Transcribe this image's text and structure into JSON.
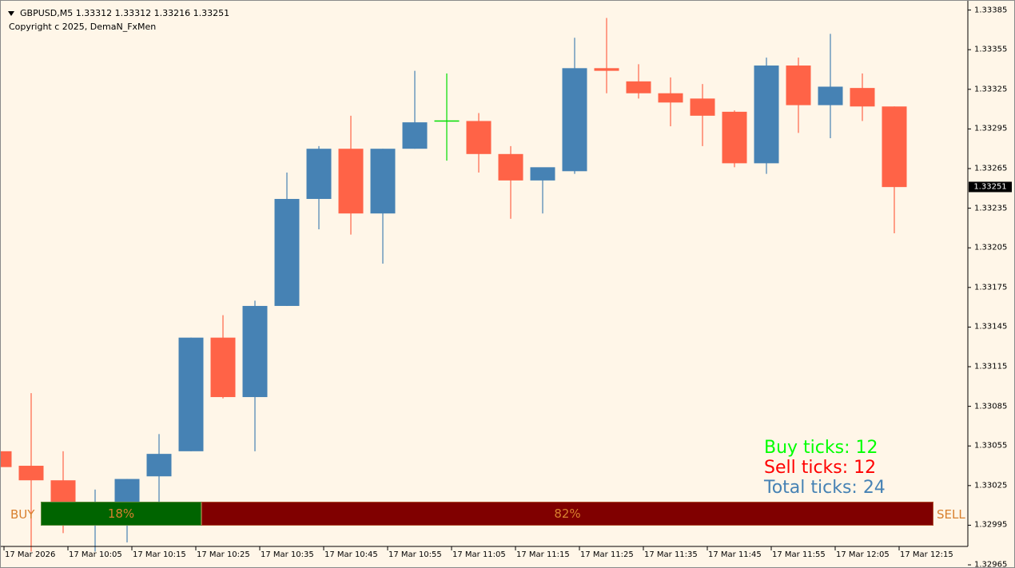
{
  "header": {
    "symbol_line": "GBPUSD,M5  1.33312 1.33312 1.33216 1.33251",
    "copyright": "Copyright c 2025, DemaN_FxMen"
  },
  "colors": {
    "background": "#fff6e8",
    "bull": "#4682b4",
    "bear": "#ff6347",
    "doji": "#00dd00",
    "buy_bar": "#006400",
    "sell_bar": "#800000",
    "buy_text": "#00ff00",
    "sell_text": "#ff0000",
    "total_text": "#4682b4",
    "pct_text": "#d8802e"
  },
  "price_axis": {
    "ticks": [
      "1.33385",
      "1.33355",
      "1.33325",
      "1.33295",
      "1.33265",
      "1.33235",
      "1.33205",
      "1.33175",
      "1.33145",
      "1.33115",
      "1.33085",
      "1.33055",
      "1.33025",
      "1.32995",
      "1.32965"
    ],
    "current_price": "1.33251"
  },
  "time_axis": {
    "labels": [
      "17 Mar 2026",
      "17 Mar 10:05",
      "17 Mar 10:15",
      "17 Mar 10:25",
      "17 Mar 10:35",
      "17 Mar 10:45",
      "17 Mar 10:55",
      "17 Mar 11:05",
      "17 Mar 11:15",
      "17 Mar 11:25",
      "17 Mar 11:35",
      "17 Mar 11:45",
      "17 Mar 11:55",
      "17 Mar 12:05",
      "17 Mar 12:15"
    ]
  },
  "chart_data": {
    "type": "candlestick",
    "symbol": "GBPUSD",
    "timeframe": "M5",
    "candles": [
      {
        "open": 1.33051,
        "high": 1.33051,
        "low": 1.33026,
        "close": 1.33039
      },
      {
        "open": 1.3304,
        "high": 1.33095,
        "low": 1.32975,
        "close": 1.33029
      },
      {
        "open": 1.33029,
        "high": 1.33051,
        "low": 1.32989,
        "close": 1.33004
      },
      {
        "open": 1.33004,
        "high": 1.33022,
        "low": 1.32975,
        "close": 1.3301
      },
      {
        "open": 1.33007,
        "high": 1.3303,
        "low": 1.32982,
        "close": 1.3303
      },
      {
        "open": 1.33032,
        "high": 1.33064,
        "low": 1.33012,
        "close": 1.33049
      },
      {
        "open": 1.33051,
        "high": 1.33137,
        "low": 1.33051,
        "close": 1.33137
      },
      {
        "open": 1.33137,
        "high": 1.33154,
        "low": 1.33091,
        "close": 1.33092
      },
      {
        "open": 1.33092,
        "high": 1.33165,
        "low": 1.33051,
        "close": 1.33161
      },
      {
        "open": 1.33161,
        "high": 1.33262,
        "low": 1.33161,
        "close": 1.33242
      },
      {
        "open": 1.33242,
        "high": 1.33282,
        "low": 1.33219,
        "close": 1.3328
      },
      {
        "open": 1.3328,
        "high": 1.33305,
        "low": 1.33215,
        "close": 1.33231
      },
      {
        "open": 1.33231,
        "high": 1.3328,
        "low": 1.33193,
        "close": 1.3328
      },
      {
        "open": 1.3328,
        "high": 1.33339,
        "low": 1.3328,
        "close": 1.333
      },
      {
        "open": 1.33301,
        "high": 1.33337,
        "low": 1.33271,
        "close": 1.33301
      },
      {
        "open": 1.33301,
        "high": 1.33307,
        "low": 1.33262,
        "close": 1.33276
      },
      {
        "open": 1.33276,
        "high": 1.33282,
        "low": 1.33227,
        "close": 1.33256
      },
      {
        "open": 1.33256,
        "high": 1.33264,
        "low": 1.33231,
        "close": 1.33266
      },
      {
        "open": 1.33263,
        "high": 1.33364,
        "low": 1.33261,
        "close": 1.33341
      },
      {
        "open": 1.33341,
        "high": 1.33379,
        "low": 1.33322,
        "close": 1.33339
      },
      {
        "open": 1.33331,
        "high": 1.33344,
        "low": 1.33318,
        "close": 1.33322
      },
      {
        "open": 1.33322,
        "high": 1.33334,
        "low": 1.33297,
        "close": 1.33315
      },
      {
        "open": 1.33318,
        "high": 1.33329,
        "low": 1.33282,
        "close": 1.33305
      },
      {
        "open": 1.33308,
        "high": 1.33309,
        "low": 1.33266,
        "close": 1.33269
      },
      {
        "open": 1.33269,
        "high": 1.33349,
        "low": 1.33261,
        "close": 1.33343
      },
      {
        "open": 1.33343,
        "high": 1.33349,
        "low": 1.33292,
        "close": 1.33313
      },
      {
        "open": 1.33313,
        "high": 1.33367,
        "low": 1.33288,
        "close": 1.33327
      },
      {
        "open": 1.33326,
        "high": 1.33337,
        "low": 1.33301,
        "close": 1.33312
      },
      {
        "open": 1.33312,
        "high": 1.33312,
        "low": 1.33216,
        "close": 1.33251
      }
    ],
    "price_range": [
      1.32962,
      1.33392
    ],
    "grid": false
  },
  "ticks": {
    "buy": "Buy ticks: 12",
    "sell": "Sell ticks: 12",
    "total": "Total ticks: 24"
  },
  "pressure_bar": {
    "buy_label": "BUY",
    "sell_label": "SELL",
    "buy_percent": 18,
    "sell_percent": 82,
    "buy_text": "18%",
    "sell_text": "82%"
  }
}
